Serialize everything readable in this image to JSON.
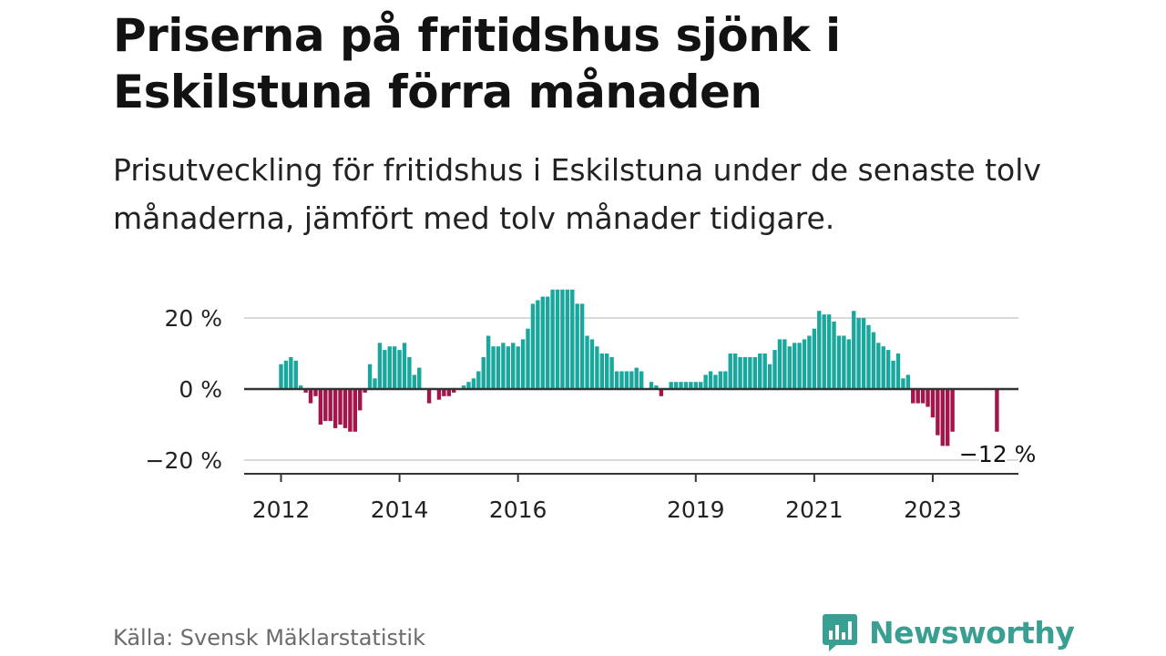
{
  "title": "Priserna på fritidshus sjönk i Eskilstuna förra månaden",
  "subtitle": "Prisutveckling för fritidshus i Eskilstuna under de senaste tolv månaderna, jämfört med tolv månader tidigare.",
  "source": "Källa: Svensk Mäklarstatistik",
  "brand": {
    "name": "Newsworthy",
    "logo_icon": "bar-chart-speech-bubble-icon"
  },
  "colors": {
    "positive": "#1aa89e",
    "negative": "#a3154b",
    "grid": "#d9d9d9",
    "zero": "#333333"
  },
  "chart_data": {
    "type": "bar",
    "x_start": "2012-01",
    "interval": "month",
    "ylim": [
      -25,
      30
    ],
    "y_ticks": [
      20,
      0,
      -20
    ],
    "y_tick_labels": [
      "20 %",
      "0 %",
      "−20 %"
    ],
    "x_ticks": [
      "2012-01",
      "2014-01",
      "2016-01",
      "2019-01",
      "2021-01",
      "2023-01"
    ],
    "x_tick_labels": [
      "2012",
      "2014",
      "2016",
      "2019",
      "2021",
      "2023"
    ],
    "grid": true,
    "annotation": {
      "label": "−12 %",
      "at": "2024-02",
      "value": -12
    },
    "values": [
      7,
      8,
      9,
      8,
      1,
      -1,
      -4,
      -2,
      -10,
      -9,
      -9,
      -11,
      -10,
      -11,
      -12,
      -12,
      -6,
      -1,
      7,
      3,
      13,
      11,
      12,
      12,
      11,
      13,
      9,
      4,
      6,
      0,
      -4,
      0,
      -3,
      -2,
      -2,
      -1,
      0,
      1,
      2,
      3,
      5,
      9,
      15,
      12,
      12,
      13,
      12,
      13,
      12,
      14,
      17,
      24,
      25,
      26,
      26,
      28,
      28,
      28,
      28,
      28,
      24,
      24,
      15,
      14,
      12,
      10,
      10,
      9,
      5,
      5,
      5,
      5,
      6,
      5,
      0,
      2,
      1,
      -2,
      0,
      2,
      2,
      2,
      2,
      2,
      2,
      2,
      4,
      5,
      4,
      5,
      5,
      10,
      10,
      9,
      9,
      9,
      9,
      10,
      10,
      7,
      11,
      14,
      14,
      12,
      13,
      13,
      14,
      15,
      17,
      22,
      21,
      21,
      19,
      15,
      15,
      14,
      22,
      20,
      20,
      18,
      16,
      13,
      12,
      11,
      8,
      10,
      3,
      4,
      -4,
      -4,
      -4,
      -5,
      -8,
      -13,
      -16,
      -16,
      -12,
      0,
      0,
      0,
      0,
      0,
      0,
      0,
      0,
      -12
    ]
  }
}
